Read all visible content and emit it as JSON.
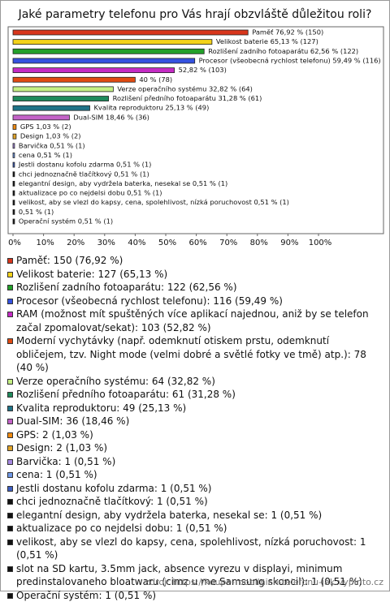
{
  "chart_data": {
    "type": "bar",
    "orientation": "horizontal",
    "title": "Jaké parametry telefonu pro Vás hrají obzvláště důležitou roli?",
    "values": [
      76.92,
      65.13,
      62.56,
      59.49,
      52.82,
      40,
      32.82,
      31.28,
      25.13,
      18.46,
      1.03,
      1.03,
      0.51,
      0.51,
      0.51,
      0.51,
      0.51,
      0.51,
      0.51,
      0.51,
      0.51
    ],
    "value_labels": [
      "Paměť 76,92 % (150)",
      "Velikost baterie 65,13 % (127)",
      "Rozlišení zadního fotoaparátu 62,56 % (122)",
      "Procesor (všeobecná rychlost telefonu) 59,49 % (116)",
      "52,82 % (103)",
      "40 % (78)",
      "Verze operačního systému 32,82 % (64)",
      "Rozlišení předního fotoaparátu 31,28 % (61)",
      "Kvalita reproduktoru 25,13 % (49)",
      "Dual-SIM 18,46 % (36)",
      "GPS 1,03 % (2)",
      "Design 1,03 % (2)",
      "Barvička 0,51 % (1)",
      "cena 0,51 % (1)",
      "Jestli dostanu kofolu zdarma 0,51 % (1)",
      "chci jednoznačně tlačítkový 0,51 % (1)",
      "elegantní design, aby vydržela baterka, nesekal se 0,51 % (1)",
      "aktualizace po co nejdelsi dobu 0,51 % (1)",
      "velikost, aby se vlezl do kapsy, cena, spolehlivost, nízká poruchovost 0,51 % (1)",
      "0,51 % (1)",
      "Operační systém 0,51 % (1)"
    ],
    "legend": [
      "Paměť: 150 (76,92 %)",
      "Velikost baterie: 127 (65,13 %)",
      "Rozlišení zadního fotoaparátu: 122 (62,56 %)",
      "Procesor (všeobecná rychlost telefonu): 116 (59,49 %)",
      "RAM (možnost mít spuštěných více aplikací najednou, aniž by se telefon začal zpomalovat/sekat): 103 (52,82 %)",
      "Moderní vychytávky (např. odemknutí otiskem prstu, odemknutí obličejem, tzv. Night mode (velmi dobré a světlé fotky ve tmě) atp.): 78 (40 %)",
      "Verze operačního systému: 64 (32,82 %)",
      "Rozlišení předního fotoaparátu: 61 (31,28 %)",
      "Kvalita reproduktoru: 49 (25,13 %)",
      "Dual-SIM: 36 (18,46 %)",
      "GPS: 2 (1,03 %)",
      "Design: 2 (1,03 %)",
      "Barvička: 1 (0,51 %)",
      "cena: 1 (0,51 %)",
      "Jestli dostanu kofolu zdarma: 1 (0,51 %)",
      "chci jednoznačně tlačítkový: 1 (0,51 %)",
      "elegantní design, aby vydržela baterka, nesekal se: 1 (0,51 %)",
      "aktualizace po co nejdelsi dobu: 1 (0,51 %)",
      "velikost, aby se vlezl do kapsy, cena, spolehlivost, nízká poruchovost: 1 (0,51 %)",
      "slot na SD kartu, 3.5mm jack, absence vyrezu v displayi, minimum predinstalovaneho bloatwaru (cimz u me Samsung skoncil): 1 (0,51 %)",
      "Operační systém: 1 (0,51 %)"
    ],
    "colors": [
      "#d8361c",
      "#f3d21a",
      "#23a02a",
      "#3552e0",
      "#c42bc4",
      "#e04a12",
      "#c4ef84",
      "#1f8a5c",
      "#1f7388",
      "#c463c8",
      "#ef8a10",
      "#e0a42a",
      "#a78ae2",
      "#6f98e6",
      "#3e5fc2",
      "#111111",
      "#111111",
      "#111111",
      "#111111",
      "#111111",
      "#111111"
    ],
    "xlim": [
      0,
      120
    ],
    "xticks": [
      {
        "value": 0,
        "label": "0%"
      },
      {
        "value": 10,
        "label": "10%"
      },
      {
        "value": 20,
        "label": "20%"
      },
      {
        "value": 30,
        "label": "30%"
      },
      {
        "value": 40,
        "label": "40%"
      },
      {
        "value": 50,
        "label": "50%"
      },
      {
        "value": 60,
        "label": "60%"
      },
      {
        "value": 70,
        "label": "70%"
      },
      {
        "value": 80,
        "label": "80%"
      },
      {
        "value": 90,
        "label": "90%"
      },
      {
        "value": 100,
        "label": "100%"
      }
    ],
    "source": "zdroj: https://koupe-mobilnich-telefonu-jak.vyplnto.cz"
  }
}
